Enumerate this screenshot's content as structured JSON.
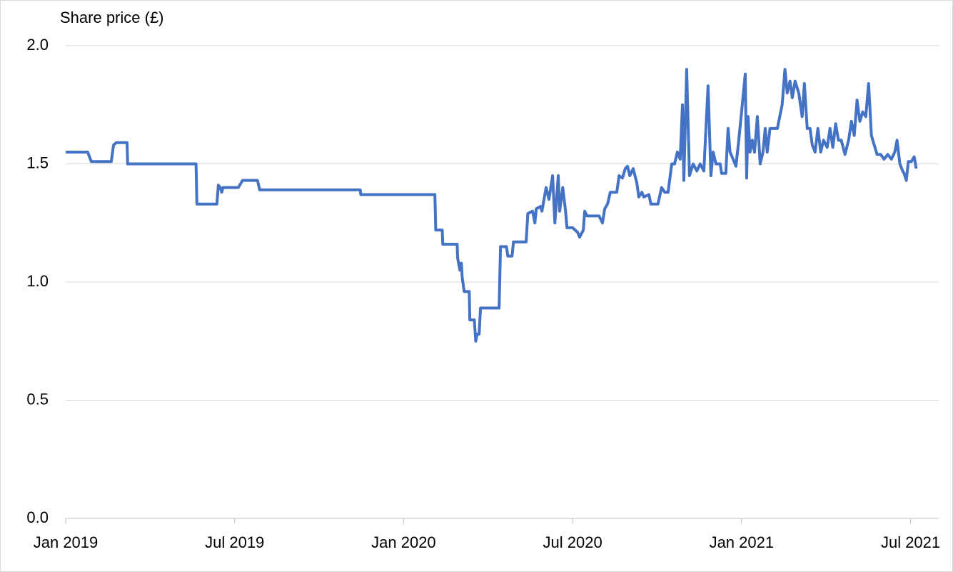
{
  "chart_data": {
    "type": "line",
    "y_label": "Share price (£)",
    "color": "#4472c4",
    "grid": true,
    "x": [
      0,
      0.78,
      0.91,
      1.62,
      1.7,
      1.8,
      2.18,
      2.2,
      4.63,
      4.66,
      5.37,
      5.42,
      5.49,
      5.54,
      5.59,
      6.13,
      6.28,
      6.81,
      6.89,
      10.46,
      10.48,
      13.11,
      13.14,
      13.37,
      13.39,
      13.9,
      13.92,
      14.0,
      14.05,
      14.08,
      14.15,
      14.33,
      14.35,
      14.51,
      14.56,
      14.61,
      14.68,
      14.73,
      15.39,
      15.44,
      15.65,
      15.7,
      15.85,
      15.9,
      16.35,
      16.41,
      16.58,
      16.66,
      16.71,
      16.86,
      16.91,
      17.06,
      17.16,
      17.29,
      17.37,
      17.49,
      17.54,
      17.65,
      17.75,
      17.8,
      18.0,
      18.18,
      18.25,
      18.38,
      18.43,
      18.51,
      18.68,
      18.94,
      19.06,
      19.14,
      19.24,
      19.34,
      19.57,
      19.65,
      19.77,
      19.87,
      19.95,
      20.03,
      20.15,
      20.28,
      20.35,
      20.46,
      20.53,
      20.71,
      20.78,
      21.03,
      21.16,
      21.27,
      21.39,
      21.52,
      21.62,
      21.72,
      21.82,
      21.9,
      21.95,
      22.05,
      22.15,
      22.28,
      22.41,
      22.53,
      22.66,
      22.81,
      22.91,
      22.99,
      23.09,
      23.24,
      23.29,
      23.44,
      23.52,
      23.59,
      23.7,
      23.8,
      23.9,
      24.0,
      24.13,
      24.18,
      24.23,
      24.3,
      24.38,
      24.46,
      24.56,
      24.66,
      24.76,
      24.84,
      24.91,
      25.01,
      25.14,
      25.27,
      25.44,
      25.54,
      25.62,
      25.72,
      25.8,
      25.9,
      26.03,
      26.15,
      26.23,
      26.33,
      26.43,
      26.51,
      26.61,
      26.71,
      26.81,
      26.91,
      27.04,
      27.14,
      27.24,
      27.34,
      27.44,
      27.54,
      27.67,
      27.8,
      27.9,
      28.0,
      28.1,
      28.2,
      28.3,
      28.41,
      28.51,
      28.61,
      28.71,
      28.81,
      28.94,
      29.06,
      29.19,
      29.32,
      29.44,
      29.52,
      29.62,
      29.72,
      29.77,
      29.85,
      29.92,
      30.03,
      30.13,
      30.2
    ],
    "values": [
      1.55,
      1.55,
      1.51,
      1.51,
      1.58,
      1.59,
      1.59,
      1.5,
      1.5,
      1.33,
      1.33,
      1.41,
      1.4,
      1.38,
      1.4,
      1.4,
      1.43,
      1.43,
      1.39,
      1.39,
      1.37,
      1.37,
      1.22,
      1.22,
      1.16,
      1.16,
      1.1,
      1.05,
      1.08,
      1.02,
      0.96,
      0.96,
      0.84,
      0.84,
      0.75,
      0.78,
      0.78,
      0.89,
      0.89,
      1.15,
      1.15,
      1.11,
      1.11,
      1.17,
      1.17,
      1.29,
      1.3,
      1.25,
      1.31,
      1.32,
      1.3,
      1.4,
      1.35,
      1.45,
      1.25,
      1.45,
      1.3,
      1.4,
      1.3,
      1.23,
      1.23,
      1.21,
      1.19,
      1.22,
      1.3,
      1.28,
      1.28,
      1.28,
      1.25,
      1.31,
      1.33,
      1.38,
      1.38,
      1.45,
      1.44,
      1.48,
      1.49,
      1.45,
      1.48,
      1.42,
      1.36,
      1.38,
      1.36,
      1.37,
      1.33,
      1.33,
      1.4,
      1.38,
      1.38,
      1.5,
      1.5,
      1.55,
      1.52,
      1.75,
      1.43,
      1.9,
      1.45,
      1.5,
      1.47,
      1.5,
      1.47,
      1.83,
      1.45,
      1.55,
      1.5,
      1.5,
      1.46,
      1.46,
      1.65,
      1.55,
      1.52,
      1.49,
      1.6,
      1.72,
      1.88,
      1.44,
      1.7,
      1.55,
      1.6,
      1.55,
      1.7,
      1.5,
      1.55,
      1.65,
      1.55,
      1.65,
      1.65,
      1.65,
      1.75,
      1.9,
      1.8,
      1.85,
      1.78,
      1.85,
      1.8,
      1.7,
      1.84,
      1.65,
      1.65,
      1.58,
      1.55,
      1.65,
      1.55,
      1.6,
      1.57,
      1.65,
      1.57,
      1.67,
      1.6,
      1.6,
      1.54,
      1.6,
      1.68,
      1.62,
      1.77,
      1.68,
      1.72,
      1.7,
      1.84,
      1.62,
      1.58,
      1.54,
      1.54,
      1.52,
      1.54,
      1.52,
      1.55,
      1.6,
      1.5,
      1.47,
      1.46,
      1.43,
      1.51,
      1.51,
      1.53,
      1.48
    ],
    "xlim": [
      0,
      31
    ],
    "xticks": [
      {
        "value": 0,
        "label": "Jan 2019"
      },
      {
        "value": 6,
        "label": "Jul 2019"
      },
      {
        "value": 12,
        "label": "Jan 2020"
      },
      {
        "value": 18,
        "label": "Jul 2020"
      },
      {
        "value": 24,
        "label": "Jan 2021"
      },
      {
        "value": 30,
        "label": "Jul 2021"
      }
    ],
    "ylim": [
      0,
      2
    ],
    "yticks": [
      {
        "value": 0,
        "label": "0.0"
      },
      {
        "value": 0.5,
        "label": "0.5"
      },
      {
        "value": 1,
        "label": "1.0"
      },
      {
        "value": 1.5,
        "label": "1.5"
      },
      {
        "value": 2,
        "label": "2.0"
      }
    ]
  }
}
